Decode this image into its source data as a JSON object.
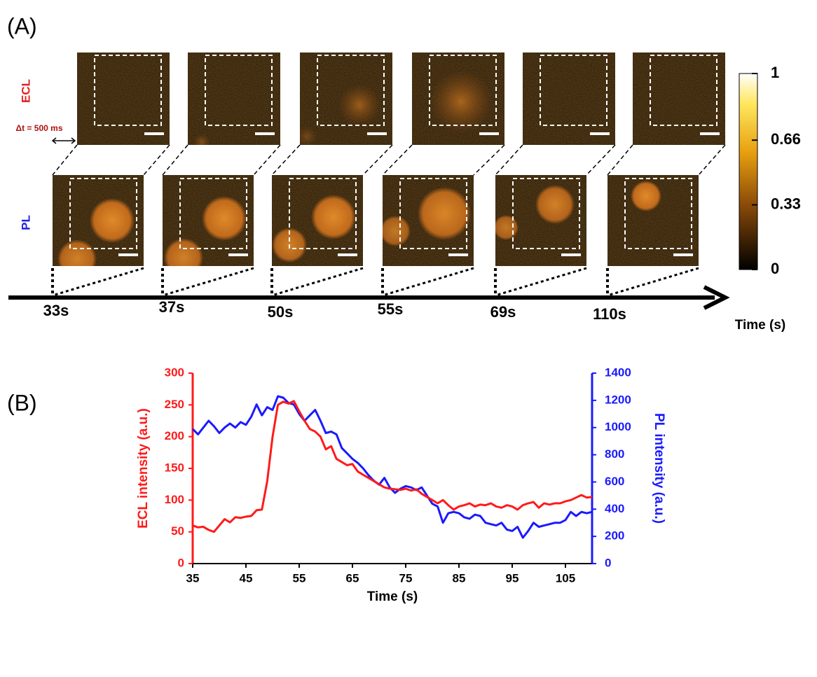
{
  "panel_a": {
    "label": "(A)",
    "ecl_label": "ECL",
    "pl_label": "PL",
    "dt_label": "Δt = 500 ms",
    "time_labels": [
      "33s",
      "37s",
      "50s",
      "55s",
      "69s",
      "110s"
    ],
    "time_axis_label": "Time (s)",
    "colorbar": {
      "lim": [
        0,
        1
      ],
      "ticks": [
        1,
        0.66,
        0.33,
        0
      ]
    }
  },
  "chart_data": {
    "type": "line",
    "label": "(B)",
    "xlabel": "Time (s)",
    "ylabel": "ECL intensity (a.u.)",
    "y2label": "PL intensity (a.u.)",
    "x": [
      35,
      36,
      37,
      38,
      39,
      40,
      41,
      42,
      43,
      44,
      45,
      46,
      47,
      48,
      49,
      50,
      51,
      52,
      53,
      54,
      55,
      56,
      57,
      58,
      59,
      60,
      61,
      62,
      63,
      64,
      65,
      66,
      67,
      68,
      69,
      70,
      71,
      72,
      73,
      74,
      75,
      76,
      77,
      78,
      79,
      80,
      81,
      82,
      83,
      84,
      85,
      86,
      87,
      88,
      89,
      90,
      91,
      92,
      93,
      94,
      95,
      96,
      97,
      98,
      99,
      100,
      101,
      102,
      103,
      104,
      105,
      106,
      107,
      108,
      109,
      110
    ],
    "series": [
      {
        "name": "ECL intensity",
        "color": "#ff1a1a",
        "axis": "y",
        "values": [
          60,
          57,
          58,
          53,
          50,
          60,
          70,
          65,
          73,
          72,
          74,
          75,
          84,
          85,
          130,
          200,
          250,
          255,
          252,
          256,
          240,
          225,
          212,
          208,
          200,
          180,
          185,
          165,
          160,
          155,
          157,
          145,
          140,
          135,
          130,
          125,
          120,
          118,
          117,
          116,
          118,
          115,
          117,
          110,
          105,
          100,
          95,
          100,
          92,
          85,
          90,
          92,
          95,
          90,
          93,
          92,
          95,
          90,
          88,
          92,
          90,
          85,
          92,
          95,
          97,
          88,
          95,
          93,
          95,
          95,
          98,
          100,
          104,
          108,
          104,
          105
        ]
      },
      {
        "name": "PL intensity",
        "color": "#1a1aff",
        "axis": "y2",
        "values": [
          990,
          950,
          1000,
          1050,
          1010,
          960,
          1000,
          1030,
          1000,
          1040,
          1020,
          1080,
          1170,
          1090,
          1150,
          1130,
          1230,
          1220,
          1180,
          1170,
          1100,
          1050,
          1090,
          1130,
          1050,
          960,
          970,
          950,
          850,
          810,
          770,
          740,
          700,
          650,
          610,
          580,
          630,
          560,
          520,
          550,
          570,
          560,
          540,
          560,
          500,
          440,
          420,
          300,
          370,
          380,
          370,
          340,
          330,
          360,
          350,
          300,
          290,
          280,
          300,
          250,
          240,
          270,
          190,
          240,
          300,
          270,
          280,
          290,
          300,
          300,
          320,
          380,
          350,
          380,
          370,
          380
        ]
      }
    ],
    "xlim": [
      35,
      110
    ],
    "xticks": [
      35,
      45,
      55,
      65,
      75,
      85,
      95,
      105
    ],
    "ylim": [
      0,
      300
    ],
    "yticks": [
      0,
      50,
      100,
      150,
      200,
      250,
      300
    ],
    "y2lim": [
      0,
      1400
    ],
    "y2ticks": [
      0,
      200,
      400,
      600,
      800,
      1000,
      1200,
      1400
    ]
  }
}
